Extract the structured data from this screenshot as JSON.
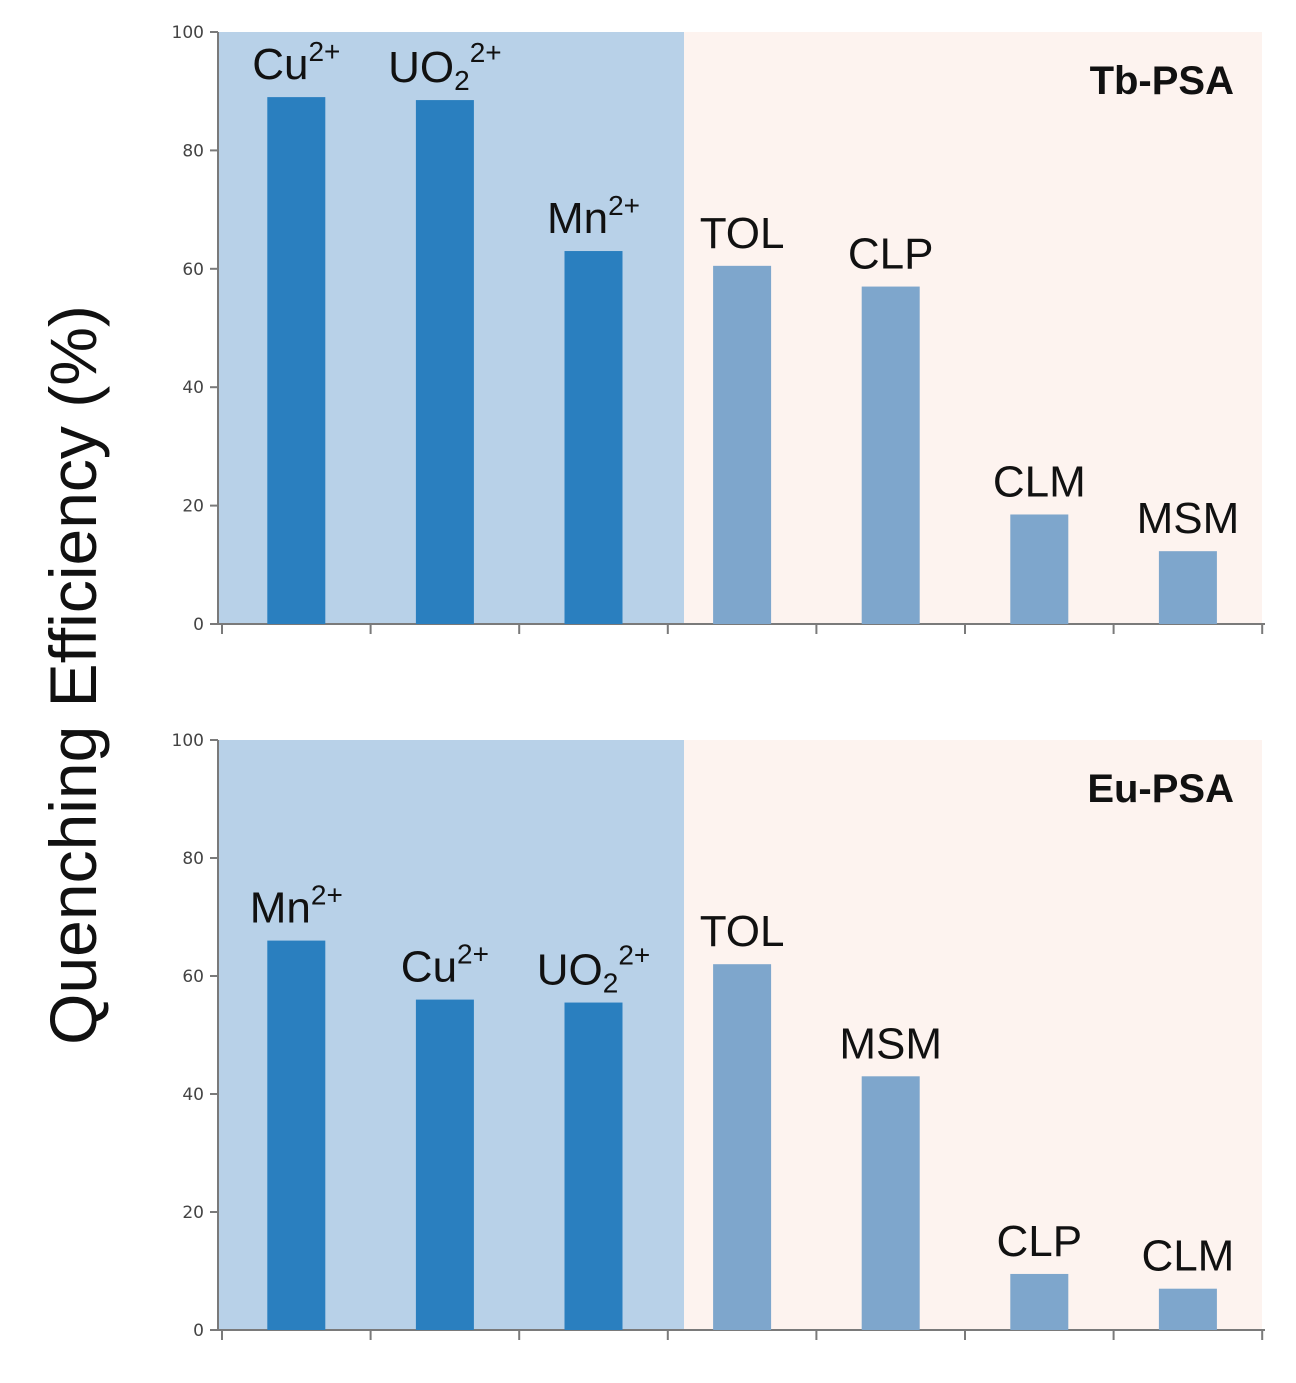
{
  "ylabel": "Quenching Efficiency (%)",
  "colors": {
    "metal_bar": "#2a7fbf",
    "drug_bar": "#7ea6cc",
    "metal_bg": "#b8d1e8",
    "drug_bg": "#fdf3ef",
    "axis": "#7a7a7a"
  },
  "chart_data": [
    {
      "type": "bar",
      "title": "Tb-PSA",
      "ylim": [
        0,
        100
      ],
      "yticks": [
        0,
        20,
        40,
        60,
        80,
        100
      ],
      "categories": [
        "Cu2+",
        "UO22+",
        "Mn2+",
        "TOL",
        "CLP",
        "CLM",
        "MSM"
      ],
      "values": [
        89,
        88.5,
        63,
        60.5,
        57,
        18.5,
        12.3
      ],
      "groups": [
        "metal",
        "metal",
        "metal",
        "drug",
        "drug",
        "drug",
        "drug"
      ]
    },
    {
      "type": "bar",
      "title": "Eu-PSA",
      "ylim": [
        0,
        100
      ],
      "yticks": [
        0,
        20,
        40,
        60,
        80,
        100
      ],
      "categories": [
        "Mn2+",
        "Cu2+",
        "UO22+",
        "TOL",
        "MSM",
        "CLP",
        "CLM"
      ],
      "values": [
        66,
        56,
        55.5,
        62,
        43,
        9.5,
        7
      ],
      "groups": [
        "metal",
        "metal",
        "metal",
        "drug",
        "drug",
        "drug",
        "drug"
      ]
    }
  ]
}
